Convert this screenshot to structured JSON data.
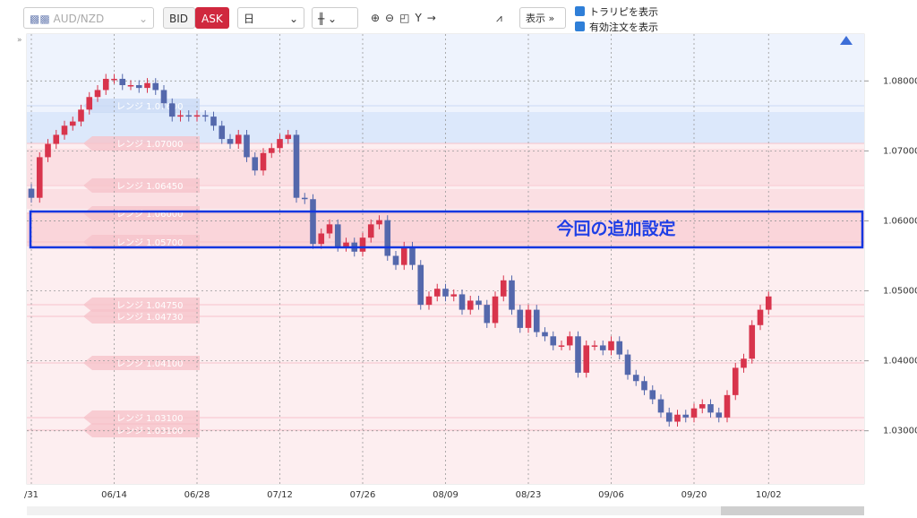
{
  "toolbar": {
    "symbol": "AUD/NZD",
    "bid": "BID",
    "ask": "ASK",
    "period": "日",
    "display": "表示",
    "checkboxes": [
      "トラリピを表示",
      "有効注文を表示"
    ]
  },
  "chart_data": {
    "type": "candlestick",
    "categories": [
      "/31",
      null,
      null,
      null,
      null,
      null,
      null,
      null,
      null,
      null,
      "06/14",
      null,
      null,
      null,
      null,
      null,
      null,
      null,
      null,
      null,
      "06/28",
      null,
      null,
      null,
      null,
      null,
      null,
      null,
      null,
      null,
      "07/12",
      null,
      null,
      null,
      null,
      null,
      null,
      null,
      null,
      null,
      "07/26",
      null,
      null,
      null,
      null,
      null,
      null,
      null,
      null,
      null,
      "08/09",
      null,
      null,
      null,
      null,
      null,
      null,
      null,
      null,
      null,
      "08/23",
      null,
      null,
      null,
      null,
      null,
      null,
      null,
      null,
      null,
      "09/06",
      null,
      null,
      null,
      null,
      null,
      null,
      null,
      null,
      null,
      "09/20",
      null,
      null,
      null,
      null,
      null,
      null,
      null,
      null,
      "10/02"
    ],
    "open": [
      1.0646,
      1.0633,
      1.0691,
      1.071,
      1.0723,
      1.0736,
      1.0742,
      1.0759,
      1.0777,
      1.0787,
      1.0803,
      1.0803,
      1.0794,
      1.0794,
      1.079,
      1.0797,
      1.0787,
      1.0768,
      1.0749,
      1.0751,
      1.0749,
      1.0751,
      1.0749,
      1.0736,
      1.0717,
      1.071,
      1.0723,
      1.0691,
      1.0672,
      1.0697,
      1.0704,
      1.0717,
      1.0723,
      1.0633,
      1.0631,
      1.0567,
      1.0582,
      1.0595,
      1.0563,
      1.0569,
      1.0556,
      1.0576,
      1.0595,
      1.0601,
      1.055,
      1.0537,
      1.0563,
      1.0537,
      1.048,
      1.0492,
      1.0503,
      1.0492,
      1.0495,
      1.0473,
      1.0486,
      1.048,
      1.0454,
      1.0492,
      1.0515,
      1.0473,
      1.0447,
      1.0473,
      1.0441,
      1.0435,
      1.0422,
      1.0422,
      1.0435,
      1.0383,
      1.0422,
      1.0422,
      1.0415,
      1.0428,
      1.0409,
      1.038,
      1.0371,
      1.0358,
      1.0345,
      1.0326,
      1.0313,
      1.0323,
      1.0319,
      1.0332,
      1.0338,
      1.0326,
      1.0319,
      1.0351,
      1.039,
      1.0403,
      1.0451,
      1.0473
    ],
    "high": [
      1.0653,
      1.0698,
      1.0717,
      1.073,
      1.0743,
      1.0749,
      1.0766,
      1.0784,
      1.0794,
      1.081,
      1.081,
      1.081,
      1.0801,
      1.0801,
      1.0804,
      1.0804,
      1.0794,
      1.0775,
      1.0758,
      1.0758,
      1.0758,
      1.0758,
      1.0756,
      1.0743,
      1.0724,
      1.073,
      1.073,
      1.0698,
      1.0704,
      1.0711,
      1.0724,
      1.073,
      1.073,
      1.064,
      1.0638,
      1.0589,
      1.0602,
      1.0602,
      1.0576,
      1.0576,
      1.0583,
      1.0602,
      1.0608,
      1.0608,
      1.0557,
      1.057,
      1.057,
      1.0544,
      1.0499,
      1.051,
      1.051,
      1.0502,
      1.0502,
      1.0493,
      1.0493,
      1.0487,
      1.0499,
      1.0522,
      1.0522,
      1.048,
      1.048,
      1.048,
      1.0448,
      1.0442,
      1.0429,
      1.0442,
      1.0442,
      1.0429,
      1.0429,
      1.0429,
      1.0435,
      1.0435,
      1.0416,
      1.0387,
      1.0378,
      1.0365,
      1.0352,
      1.0333,
      1.033,
      1.033,
      1.0339,
      1.0345,
      1.0345,
      1.0333,
      1.0358,
      1.0397,
      1.041,
      1.0458,
      1.048,
      1.0499
    ],
    "low": [
      1.0626,
      1.0626,
      1.0684,
      1.0703,
      1.0716,
      1.0729,
      1.0735,
      1.0752,
      1.077,
      1.078,
      1.0796,
      1.0787,
      1.0787,
      1.0783,
      1.0783,
      1.078,
      1.0761,
      1.0742,
      1.0742,
      1.0742,
      1.0742,
      1.0742,
      1.0729,
      1.071,
      1.0703,
      1.0703,
      1.0684,
      1.0665,
      1.0665,
      1.069,
      1.0697,
      1.071,
      1.0626,
      1.0624,
      1.056,
      1.056,
      1.0575,
      1.0556,
      1.0556,
      1.0549,
      1.0549,
      1.0569,
      1.0588,
      1.0543,
      1.053,
      1.053,
      1.053,
      1.0473,
      1.0473,
      1.0485,
      1.0485,
      1.0485,
      1.0466,
      1.0466,
      1.0473,
      1.0447,
      1.0447,
      1.0485,
      1.0466,
      1.044,
      1.044,
      1.0434,
      1.0428,
      1.0415,
      1.0415,
      1.0415,
      1.0376,
      1.0376,
      1.0415,
      1.0408,
      1.0408,
      1.0402,
      1.0373,
      1.0364,
      1.0351,
      1.0338,
      1.0319,
      1.0306,
      1.0306,
      1.0312,
      1.0312,
      1.0325,
      1.0319,
      1.0312,
      1.0312,
      1.0344,
      1.0383,
      1.0396,
      1.0444,
      1.0466
    ],
    "close": [
      1.0633,
      1.0691,
      1.071,
      1.0723,
      1.0736,
      1.0742,
      1.0759,
      1.0777,
      1.0787,
      1.0803,
      1.0803,
      1.0794,
      1.0794,
      1.079,
      1.0797,
      1.0787,
      1.0768,
      1.0749,
      1.0751,
      1.0749,
      1.0751,
      1.0749,
      1.0736,
      1.0717,
      1.071,
      1.0723,
      1.0691,
      1.0672,
      1.0697,
      1.0704,
      1.0717,
      1.0723,
      1.0633,
      1.0631,
      1.0567,
      1.0582,
      1.0595,
      1.0563,
      1.0569,
      1.0556,
      1.0576,
      1.0595,
      1.0601,
      1.055,
      1.0537,
      1.0563,
      1.0537,
      1.048,
      1.0492,
      1.0503,
      1.0492,
      1.0495,
      1.0473,
      1.0486,
      1.048,
      1.0454,
      1.0492,
      1.0515,
      1.0473,
      1.0447,
      1.0473,
      1.0441,
      1.0435,
      1.0422,
      1.0422,
      1.0435,
      1.0383,
      1.0422,
      1.0422,
      1.0415,
      1.0428,
      1.0409,
      1.038,
      1.0371,
      1.0358,
      1.0345,
      1.0326,
      1.0313,
      1.0323,
      1.0319,
      1.0332,
      1.0338,
      1.0326,
      1.0319,
      1.0351,
      1.039,
      1.0403,
      1.0451,
      1.0473,
      1.0492
    ],
    "up_color": "#d8344c",
    "down_color": "#5468ac",
    "ylim": [
      1.0224,
      1.0867
    ],
    "yticks": [
      {
        "value": 1.03,
        "label": "1.03000"
      },
      {
        "value": 1.04,
        "label": "1.04000"
      },
      {
        "value": 1.05,
        "label": "1.05000"
      },
      {
        "value": 1.06,
        "label": "1.06000"
      },
      {
        "value": 1.07,
        "label": "1.07000"
      },
      {
        "value": 1.08,
        "label": "1.08000"
      }
    ],
    "grid": true,
    "annotation": "今回の追加設定",
    "range_labels": [
      "レンジ 1.07600",
      "レンジ 1.07000",
      "レンジ 1.06450",
      "レンジ 1.06000",
      "レンジ 1.05700",
      "レンジ 1.04750",
      "レンジ 1.04730",
      "レンジ 1.04100",
      "レンジ 1.03100",
      "レンジ 1.03100"
    ]
  }
}
